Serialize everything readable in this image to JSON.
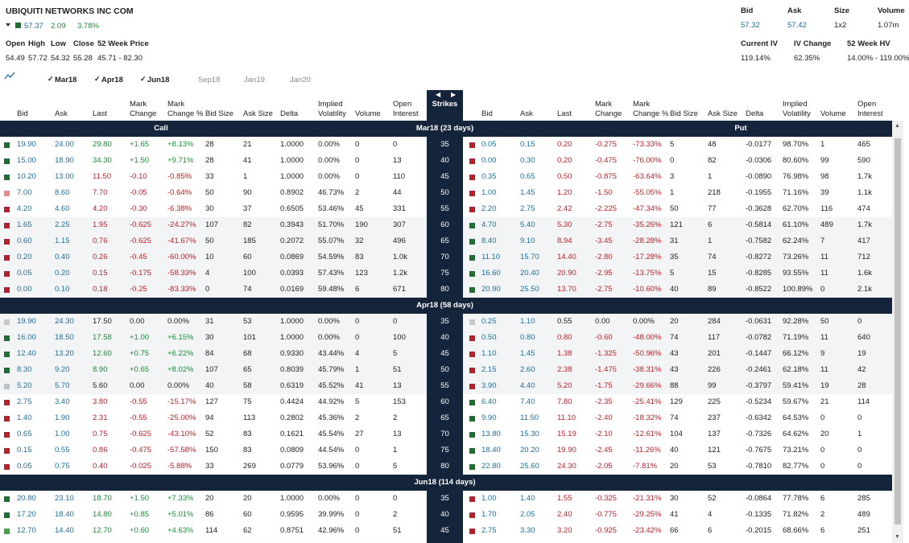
{
  "header": {
    "title": "UBIQUITI NETWORKS INC COM",
    "price": "57.37",
    "change": "2.09",
    "change_pct": "3.78%",
    "stats": [
      {
        "label": "Open",
        "value": "54.49"
      },
      {
        "label": "High",
        "value": "57.72"
      },
      {
        "label": "Low",
        "value": "54.32"
      },
      {
        "label": "Close",
        "value": "55.28"
      },
      {
        "label": "52 Week Price",
        "value": "45.71 - 82.30"
      }
    ],
    "quote": [
      {
        "label": "Bid",
        "value": "57.32"
      },
      {
        "label": "Ask",
        "value": "57.42"
      },
      {
        "label": "Size",
        "value": "1x2"
      },
      {
        "label": "Volume",
        "value": "1.07m"
      }
    ],
    "vol": [
      {
        "label": "Current IV",
        "value": "119.14%"
      },
      {
        "label": "IV Change",
        "value": "62.35%"
      },
      {
        "label": "52 Week HV",
        "value": "14.00% - 119.00%"
      }
    ]
  },
  "tabs": [
    {
      "label": "Mar18",
      "checked": true
    },
    {
      "label": "Apr18",
      "checked": true
    },
    {
      "label": "Jun18",
      "checked": true
    },
    {
      "label": "Sep18",
      "checked": false
    },
    {
      "label": "Jan19",
      "checked": false
    },
    {
      "label": "Jan20",
      "checked": false
    }
  ],
  "table": {
    "columns": [
      "Bid",
      "Ask",
      "Last",
      "Mark Change",
      "Mark Change %",
      "Bid Size",
      "Ask Size",
      "Delta",
      "Implied Volatility",
      "Volume",
      "Open Interest"
    ],
    "strikes_label": "Strikes",
    "call_label": "Call",
    "put_label": "Put",
    "sections": [
      {
        "label": "Mar18 (23 days)",
        "rows": [
          {
            "strike": "35",
            "call_mark": "#1e6e30",
            "put_mark": "#b7202a",
            "call": [
              "19.90",
              "24.00",
              "29.80",
              "+1.65",
              "+8.13%",
              "28",
              "21",
              "1.0000",
              "0.00%",
              "0",
              "0"
            ],
            "put": [
              "0.05",
              "0.15",
              "0.20",
              "-0.275",
              "-73.33%",
              "5",
              "48",
              "-0.0177",
              "98.70%",
              "1",
              "465"
            ]
          },
          {
            "strike": "40",
            "call_mark": "#1e6e30",
            "put_mark": "#b7202a",
            "call": [
              "15.00",
              "18.90",
              "34.30",
              "+1.50",
              "+9.71%",
              "28",
              "41",
              "1.0000",
              "0.00%",
              "0",
              "13"
            ],
            "put": [
              "0.00",
              "0.30",
              "0.20",
              "-0.475",
              "-76.00%",
              "0",
              "82",
              "-0.0306",
              "80.60%",
              "99",
              "590"
            ]
          },
          {
            "strike": "45",
            "call_mark": "#1e6e30",
            "put_mark": "#b7202a",
            "call": [
              "10.20",
              "13.00",
              "11.50",
              "-0.10",
              "-0.85%",
              "33",
              "1",
              "1.0000",
              "0.00%",
              "0",
              "110"
            ],
            "put": [
              "0.35",
              "0.65",
              "0.50",
              "-0.875",
              "-63.64%",
              "3",
              "1",
              "-0.0890",
              "76.98%",
              "98",
              "1.7k"
            ]
          },
          {
            "strike": "50",
            "call_mark": "#e88a8a",
            "put_mark": "#b7202a",
            "call": [
              "7.00",
              "8.60",
              "7.70",
              "-0.05",
              "-0.64%",
              "50",
              "90",
              "0.8902",
              "46.73%",
              "2",
              "44"
            ],
            "put": [
              "1.00",
              "1.45",
              "1.20",
              "-1.50",
              "-55.05%",
              "1",
              "218",
              "-0.1955",
              "71.16%",
              "39",
              "1.1k"
            ]
          },
          {
            "strike": "55",
            "call_mark": "#b7202a",
            "put_mark": "#b7202a",
            "call": [
              "4.20",
              "4.60",
              "4.20",
              "-0.30",
              "-6.38%",
              "30",
              "37",
              "0.6505",
              "53.46%",
              "45",
              "331"
            ],
            "put": [
              "2.20",
              "2.75",
              "2.42",
              "-2.225",
              "-47.34%",
              "50",
              "77",
              "-0.3628",
              "62.70%",
              "116",
              "474"
            ]
          },
          {
            "strike": "60",
            "call_mark": "#b7202a",
            "put_mark": "#1e6e30",
            "call": [
              "1.65",
              "2.25",
              "1.95",
              "-0.625",
              "-24.27%",
              "107",
              "82",
              "0.3943",
              "51.70%",
              "190",
              "307"
            ],
            "put": [
              "4.70",
              "5.40",
              "5.30",
              "-2.75",
              "-35.26%",
              "121",
              "6",
              "-0.5814",
              "61.10%",
              "489",
              "1.7k"
            ]
          },
          {
            "strike": "65",
            "call_mark": "#b7202a",
            "put_mark": "#1e6e30",
            "call": [
              "0.60",
              "1.15",
              "0.76",
              "-0.625",
              "-41.67%",
              "50",
              "185",
              "0.2072",
              "55.07%",
              "32",
              "496"
            ],
            "put": [
              "8.40",
              "9.10",
              "8.94",
              "-3.45",
              "-28.28%",
              "31",
              "1",
              "-0.7582",
              "62.24%",
              "7",
              "417"
            ]
          },
          {
            "strike": "70",
            "call_mark": "#b7202a",
            "put_mark": "#1e6e30",
            "call": [
              "0.20",
              "0.40",
              "0.26",
              "-0.45",
              "-60.00%",
              "10",
              "60",
              "0.0869",
              "54.59%",
              "83",
              "1.0k"
            ],
            "put": [
              "11.10",
              "15.70",
              "14.40",
              "-2.80",
              "-17.28%",
              "35",
              "74",
              "-0.8272",
              "73.26%",
              "11",
              "712"
            ]
          },
          {
            "strike": "75",
            "call_mark": "#b7202a",
            "put_mark": "#1e6e30",
            "call": [
              "0.05",
              "0.20",
              "0.15",
              "-0.175",
              "-58.33%",
              "4",
              "100",
              "0.0393",
              "57.43%",
              "123",
              "1.2k"
            ],
            "put": [
              "16.60",
              "20.40",
              "20.90",
              "-2.95",
              "-13.75%",
              "5",
              "15",
              "-0.8285",
              "93.55%",
              "11",
              "1.6k"
            ]
          },
          {
            "strike": "80",
            "call_mark": "#b7202a",
            "put_mark": "#1e6e30",
            "call": [
              "0.00",
              "0.10",
              "0.18",
              "-0.25",
              "-83.33%",
              "0",
              "74",
              "0.0169",
              "59.48%",
              "6",
              "671"
            ],
            "put": [
              "20.90",
              "25.50",
              "13.70",
              "-2.75",
              "-10.60%",
              "40",
              "89",
              "-0.8522",
              "100.89%",
              "0",
              "2.1k"
            ]
          }
        ]
      },
      {
        "label": "Apr18 (58 days)",
        "rows": [
          {
            "strike": "35",
            "call_mark": "#c8c8c8",
            "put_mark": "#c8c8c8",
            "call": [
              "19.90",
              "24.30",
              "17.50",
              "0.00",
              "0.00%",
              "31",
              "53",
              "1.0000",
              "0.00%",
              "0",
              "0"
            ],
            "put": [
              "0.25",
              "1.10",
              "0.55",
              "0.00",
              "0.00%",
              "20",
              "284",
              "-0.0631",
              "92.28%",
              "50",
              "0"
            ]
          },
          {
            "strike": "40",
            "call_mark": "#1e6e30",
            "put_mark": "#b7202a",
            "call": [
              "16.00",
              "18.50",
              "17.58",
              "+1.00",
              "+6.15%",
              "30",
              "101",
              "1.0000",
              "0.00%",
              "0",
              "100"
            ],
            "put": [
              "0.50",
              "0.80",
              "0.80",
              "-0.60",
              "-48.00%",
              "74",
              "117",
              "-0.0782",
              "71.19%",
              "11",
              "640"
            ]
          },
          {
            "strike": "45",
            "call_mark": "#1e6e30",
            "put_mark": "#b7202a",
            "call": [
              "12.40",
              "13.20",
              "12.60",
              "+0.75",
              "+6.22%",
              "84",
              "68",
              "0.9330",
              "43.44%",
              "4",
              "5"
            ],
            "put": [
              "1.10",
              "1.45",
              "1.38",
              "-1.325",
              "-50.96%",
              "43",
              "201",
              "-0.1447",
              "66.12%",
              "9",
              "19"
            ]
          },
          {
            "strike": "50",
            "call_mark": "#1e6e30",
            "put_mark": "#b7202a",
            "call": [
              "8.30",
              "9.20",
              "8.90",
              "+0.65",
              "+8.02%",
              "107",
              "65",
              "0.8039",
              "45.79%",
              "1",
              "51"
            ],
            "put": [
              "2.15",
              "2.60",
              "2.38",
              "-1.475",
              "-38.31%",
              "43",
              "226",
              "-0.2461",
              "62.18%",
              "11",
              "42"
            ]
          },
          {
            "strike": "55",
            "call_mark": "#b8c4cc",
            "put_mark": "#b7202a",
            "call": [
              "5.20",
              "5.70",
              "5.60",
              "0.00",
              "0.00%",
              "40",
              "58",
              "0.6319",
              "45.52%",
              "41",
              "13"
            ],
            "put": [
              "3.90",
              "4.40",
              "5.20",
              "-1.75",
              "-29.66%",
              "88",
              "99",
              "-0.3797",
              "59.41%",
              "19",
              "28"
            ]
          },
          {
            "strike": "60",
            "call_mark": "#b7202a",
            "put_mark": "#1e6e30",
            "call": [
              "2.75",
              "3.40",
              "3.80",
              "-0.55",
              "-15.17%",
              "127",
              "75",
              "0.4424",
              "44.92%",
              "5",
              "153"
            ],
            "put": [
              "6.40",
              "7.40",
              "7.80",
              "-2.35",
              "-25.41%",
              "129",
              "225",
              "-0.5234",
              "59.67%",
              "21",
              "114"
            ]
          },
          {
            "strike": "65",
            "call_mark": "#b7202a",
            "put_mark": "#1e6e30",
            "call": [
              "1.40",
              "1.90",
              "2.31",
              "-0.55",
              "-25.00%",
              "94",
              "113",
              "0.2802",
              "45.36%",
              "2",
              "2"
            ],
            "put": [
              "9.90",
              "11.50",
              "11.10",
              "-2.40",
              "-18.32%",
              "74",
              "237",
              "-0.6342",
              "64.53%",
              "0",
              "0"
            ]
          },
          {
            "strike": "70",
            "call_mark": "#b7202a",
            "put_mark": "#1e6e30",
            "call": [
              "0.65",
              "1.00",
              "0.75",
              "-0.625",
              "-43.10%",
              "52",
              "83",
              "0.1621",
              "45.54%",
              "27",
              "13"
            ],
            "put": [
              "13.80",
              "15.30",
              "15.19",
              "-2.10",
              "-12.61%",
              "104",
              "137",
              "-0.7326",
              "64.62%",
              "20",
              "1"
            ]
          },
          {
            "strike": "75",
            "call_mark": "#b7202a",
            "put_mark": "#1e6e30",
            "call": [
              "0.15",
              "0.55",
              "0.86",
              "-0.475",
              "-57.58%",
              "150",
              "83",
              "0.0809",
              "44.54%",
              "0",
              "1"
            ],
            "put": [
              "18.40",
              "20.20",
              "19.90",
              "-2.45",
              "-11.26%",
              "40",
              "121",
              "-0.7675",
              "73.21%",
              "0",
              "0"
            ]
          },
          {
            "strike": "80",
            "call_mark": "#b7202a",
            "put_mark": "#1e6e30",
            "call": [
              "0.05",
              "0.75",
              "0.40",
              "-0.025",
              "-5.88%",
              "33",
              "269",
              "0.0779",
              "53.96%",
              "0",
              "5"
            ],
            "put": [
              "22.80",
              "25.60",
              "24.30",
              "-2.05",
              "-7.81%",
              "20",
              "53",
              "-0.7810",
              "82.77%",
              "0",
              "0"
            ]
          }
        ]
      },
      {
        "label": "Jun18 (114 days)",
        "rows": [
          {
            "strike": "35",
            "call_mark": "#1e6e30",
            "put_mark": "#b7202a",
            "call": [
              "20.80",
              "23.10",
              "18.70",
              "+1.50",
              "+7.33%",
              "20",
              "20",
              "1.0000",
              "0.00%",
              "0",
              "0"
            ],
            "put": [
              "1.00",
              "1.40",
              "1.55",
              "-0.325",
              "-21.31%",
              "30",
              "52",
              "-0.0864",
              "77.78%",
              "6",
              "285"
            ]
          },
          {
            "strike": "40",
            "call_mark": "#1e6e30",
            "put_mark": "#b7202a",
            "call": [
              "17.20",
              "18.40",
              "14.80",
              "+0.85",
              "+5.01%",
              "86",
              "60",
              "0.9595",
              "39.99%",
              "0",
              "2"
            ],
            "put": [
              "1.70",
              "2.05",
              "2.40",
              "-0.775",
              "-29.25%",
              "41",
              "4",
              "-0.1335",
              "71.82%",
              "2",
              "489"
            ]
          },
          {
            "strike": "45",
            "call_mark": "#43a047",
            "put_mark": "#b7202a",
            "call": [
              "12.70",
              "14.40",
              "12.70",
              "+0.60",
              "+4.63%",
              "114",
              "62",
              "0.8751",
              "42.96%",
              "0",
              "51"
            ],
            "put": [
              "2.75",
              "3.30",
              "3.20",
              "-0.925",
              "-23.42%",
              "66",
              "6",
              "-0.2015",
              "68.66%",
              "6",
              "251"
            ]
          }
        ]
      }
    ]
  }
}
